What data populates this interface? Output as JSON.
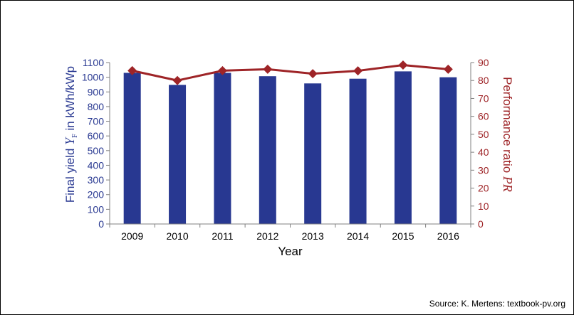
{
  "chart_data": {
    "type": "bar",
    "categories": [
      "2009",
      "2010",
      "2011",
      "2012",
      "2013",
      "2014",
      "2015",
      "2016"
    ],
    "series": [
      {
        "name": "",
        "type": "bar",
        "axis": "left",
        "values": [
          1030,
          948,
          1030,
          1007,
          958,
          990,
          1040,
          1000
        ]
      },
      {
        "name": "",
        "type": "line",
        "axis": "right",
        "values": [
          85.5,
          80,
          85.5,
          86.3,
          83.8,
          85.4,
          88.6,
          86.3
        ]
      }
    ],
    "xlabel": "Year",
    "ylabel_left": {
      "main": "Final yield ",
      "var": "Y",
      "sub": "F",
      "unit": " in kWh/kWp"
    },
    "ylabel_right": {
      "main": "Performance ratio ",
      "var": "PR"
    },
    "ylim_left": [
      0,
      1100
    ],
    "yticks_left": [
      "0",
      "100",
      "200",
      "300",
      "400",
      "500",
      "600",
      "700",
      "800",
      "900",
      "1000",
      "1100"
    ],
    "ylim_right": [
      0,
      90
    ],
    "yticks_right": [
      "0",
      "10",
      "20",
      "30",
      "40",
      "50",
      "60",
      "70",
      "80",
      "90"
    ],
    "grid": false,
    "legend": "none",
    "colors": {
      "bar": "#283891",
      "line": "#9e2427",
      "axis_left_text": "#283891",
      "axis_right_text": "#9e2427"
    }
  },
  "source": "Source: K. Mertens: textbook-pv.org"
}
